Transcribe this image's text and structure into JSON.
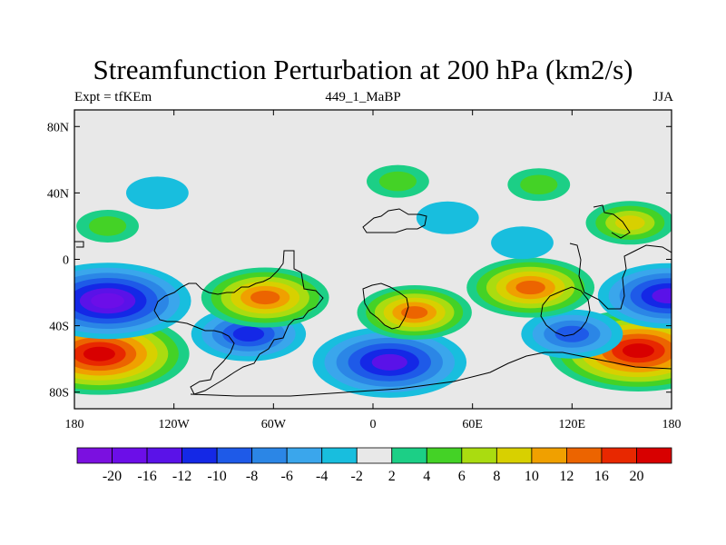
{
  "title": "Streamfunction Perturbation at 200 hPa (km2/s)",
  "subtitle_left": "Expt = tfKEm",
  "subtitle_center": "449_1_MaBP",
  "subtitle_right": "JJA",
  "colors": {
    "levels": [
      "#7b10e0",
      "#6c0ee8",
      "#5a12e8",
      "#1428e6",
      "#1e5ae8",
      "#2b86e6",
      "#3aa6ec",
      "#18bede",
      "#e8e8e8",
      "#1ccf86",
      "#44d226",
      "#aadc10",
      "#d8d000",
      "#f0a000",
      "#ec6400",
      "#e82800",
      "#d80000"
    ],
    "background": "#e8e8e8"
  },
  "chart_data": {
    "type": "contour-map",
    "projection": "cylindrical-equidistant",
    "field": "200 hPa streamfunction perturbation",
    "units": "km2/s",
    "lon_range": [
      -180,
      180
    ],
    "lat_range": [
      -90,
      90
    ],
    "x_tick_labels": [
      "180",
      "120W",
      "60W",
      "0",
      "60E",
      "120E",
      "180"
    ],
    "x_tick_values": [
      -180,
      -120,
      -60,
      0,
      60,
      120,
      180
    ],
    "y_tick_labels": [
      "80N",
      "40N",
      "0",
      "40S",
      "80S"
    ],
    "y_tick_values": [
      80,
      40,
      0,
      -40,
      -80
    ],
    "colorbar_labels": [
      "-20",
      "-16",
      "-12",
      "-10",
      "-8",
      "-6",
      "-4",
      "-2",
      "2",
      "4",
      "6",
      "8",
      "10",
      "12",
      "16",
      "20"
    ],
    "features": [
      {
        "lon": -165,
        "lat": -57,
        "value": 22
      },
      {
        "lon": -160,
        "lat": -25,
        "value": -20
      },
      {
        "lon": 160,
        "lat": -55,
        "value": 22
      },
      {
        "lon": 178,
        "lat": -22,
        "value": -16
      },
      {
        "lon": 10,
        "lat": -62,
        "value": -18
      },
      {
        "lon": -75,
        "lat": -45,
        "value": -12
      },
      {
        "lon": 120,
        "lat": -45,
        "value": -10
      },
      {
        "lon": -65,
        "lat": -23,
        "value": 14
      },
      {
        "lon": 95,
        "lat": -17,
        "value": 14
      },
      {
        "lon": 25,
        "lat": -32,
        "value": 12
      },
      {
        "lon": 155,
        "lat": 22,
        "value": 8
      },
      {
        "lon": 15,
        "lat": 47,
        "value": 4
      },
      {
        "lon": 100,
        "lat": 45,
        "value": 4
      },
      {
        "lon": 45,
        "lat": 25,
        "value": -4
      },
      {
        "lon": 90,
        "lat": 10,
        "value": -4
      },
      {
        "lon": -130,
        "lat": 40,
        "value": -4
      },
      {
        "lon": -160,
        "lat": 20,
        "value": 4
      }
    ]
  }
}
